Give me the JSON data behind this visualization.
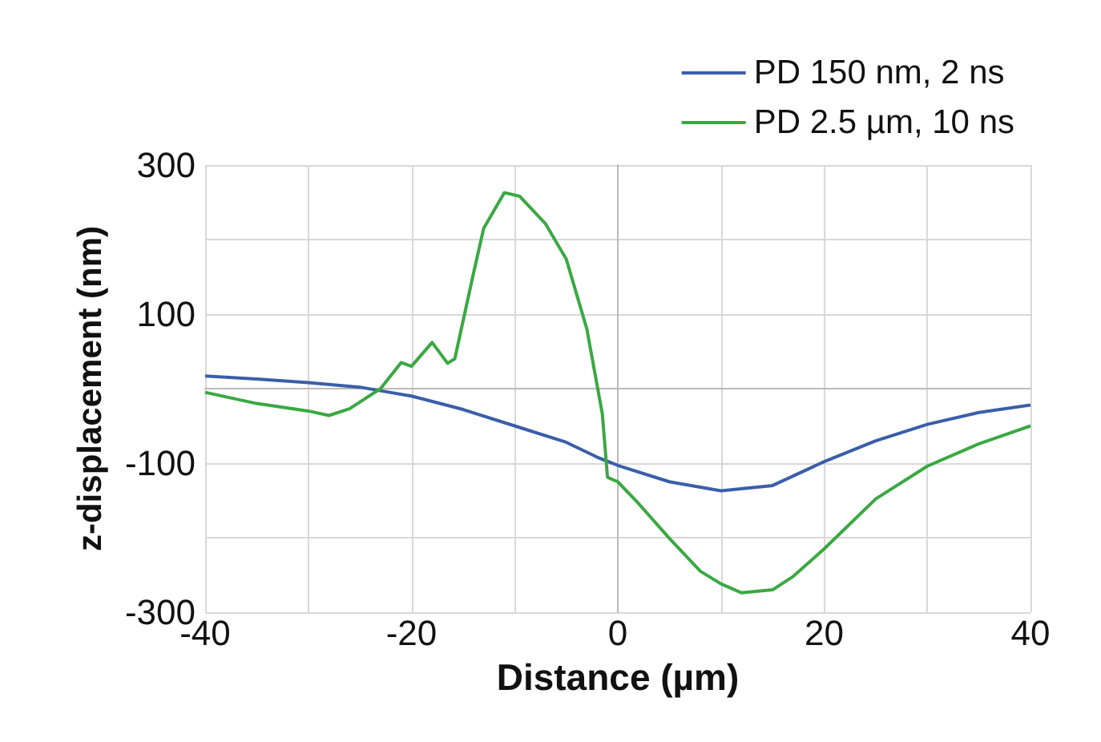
{
  "chart_data": {
    "type": "line",
    "xlabel": "Distance (µm)",
    "ylabel": "z-displacement (nm)",
    "xlim": [
      -40,
      40
    ],
    "ylim": [
      -300,
      300
    ],
    "xticks": [
      -40,
      {
        "value": -30,
        "label": null
      },
      -20,
      {
        "value": -10,
        "label": null
      },
      0,
      {
        "value": 10,
        "label": null
      },
      20,
      {
        "value": 30,
        "label": null
      },
      40
    ],
    "yticks": [
      -300,
      {
        "value": -200,
        "label": null
      },
      -100,
      {
        "value": 0,
        "label": null
      },
      100,
      {
        "value": 200,
        "label": null
      },
      300
    ],
    "grid": true,
    "legend": "top right",
    "marker": "none",
    "line_style": "solid",
    "series": [
      {
        "name": "PD 150 nm, 2 ns",
        "color": "#3a5ea8",
        "x": [
          -40,
          -35,
          -30,
          -25,
          -20,
          -15,
          -10,
          -5,
          -2,
          0,
          5,
          10,
          15,
          20,
          25,
          30,
          35,
          40
        ],
        "values": [
          17,
          13,
          8,
          2,
          -10,
          -28,
          -50,
          -72,
          -92,
          -103,
          -125,
          -137,
          -130,
          -98,
          -70,
          -48,
          -32,
          -22
        ]
      },
      {
        "name": "PD 2.5 µm, 10 ns",
        "color": "#3aa843",
        "x": [
          -40,
          -35,
          -30,
          -28,
          -26,
          -23,
          -21,
          -20,
          -18,
          -16.5,
          -15.8,
          -14,
          -13,
          -11,
          -9.5,
          -7,
          -5,
          -3,
          -1.5,
          -1,
          0,
          2,
          5,
          8,
          10,
          12,
          15,
          17,
          20,
          25,
          30,
          35,
          40
        ],
        "values": [
          -5,
          -20,
          -30,
          -36,
          -27,
          0,
          35,
          30,
          62,
          34,
          40,
          154,
          215,
          263,
          258,
          221,
          174,
          80,
          -34,
          -119,
          -125,
          -154,
          -201,
          -245,
          -262,
          -274,
          -270,
          -252,
          -215,
          -148,
          -104,
          -74,
          -50
        ]
      }
    ]
  }
}
